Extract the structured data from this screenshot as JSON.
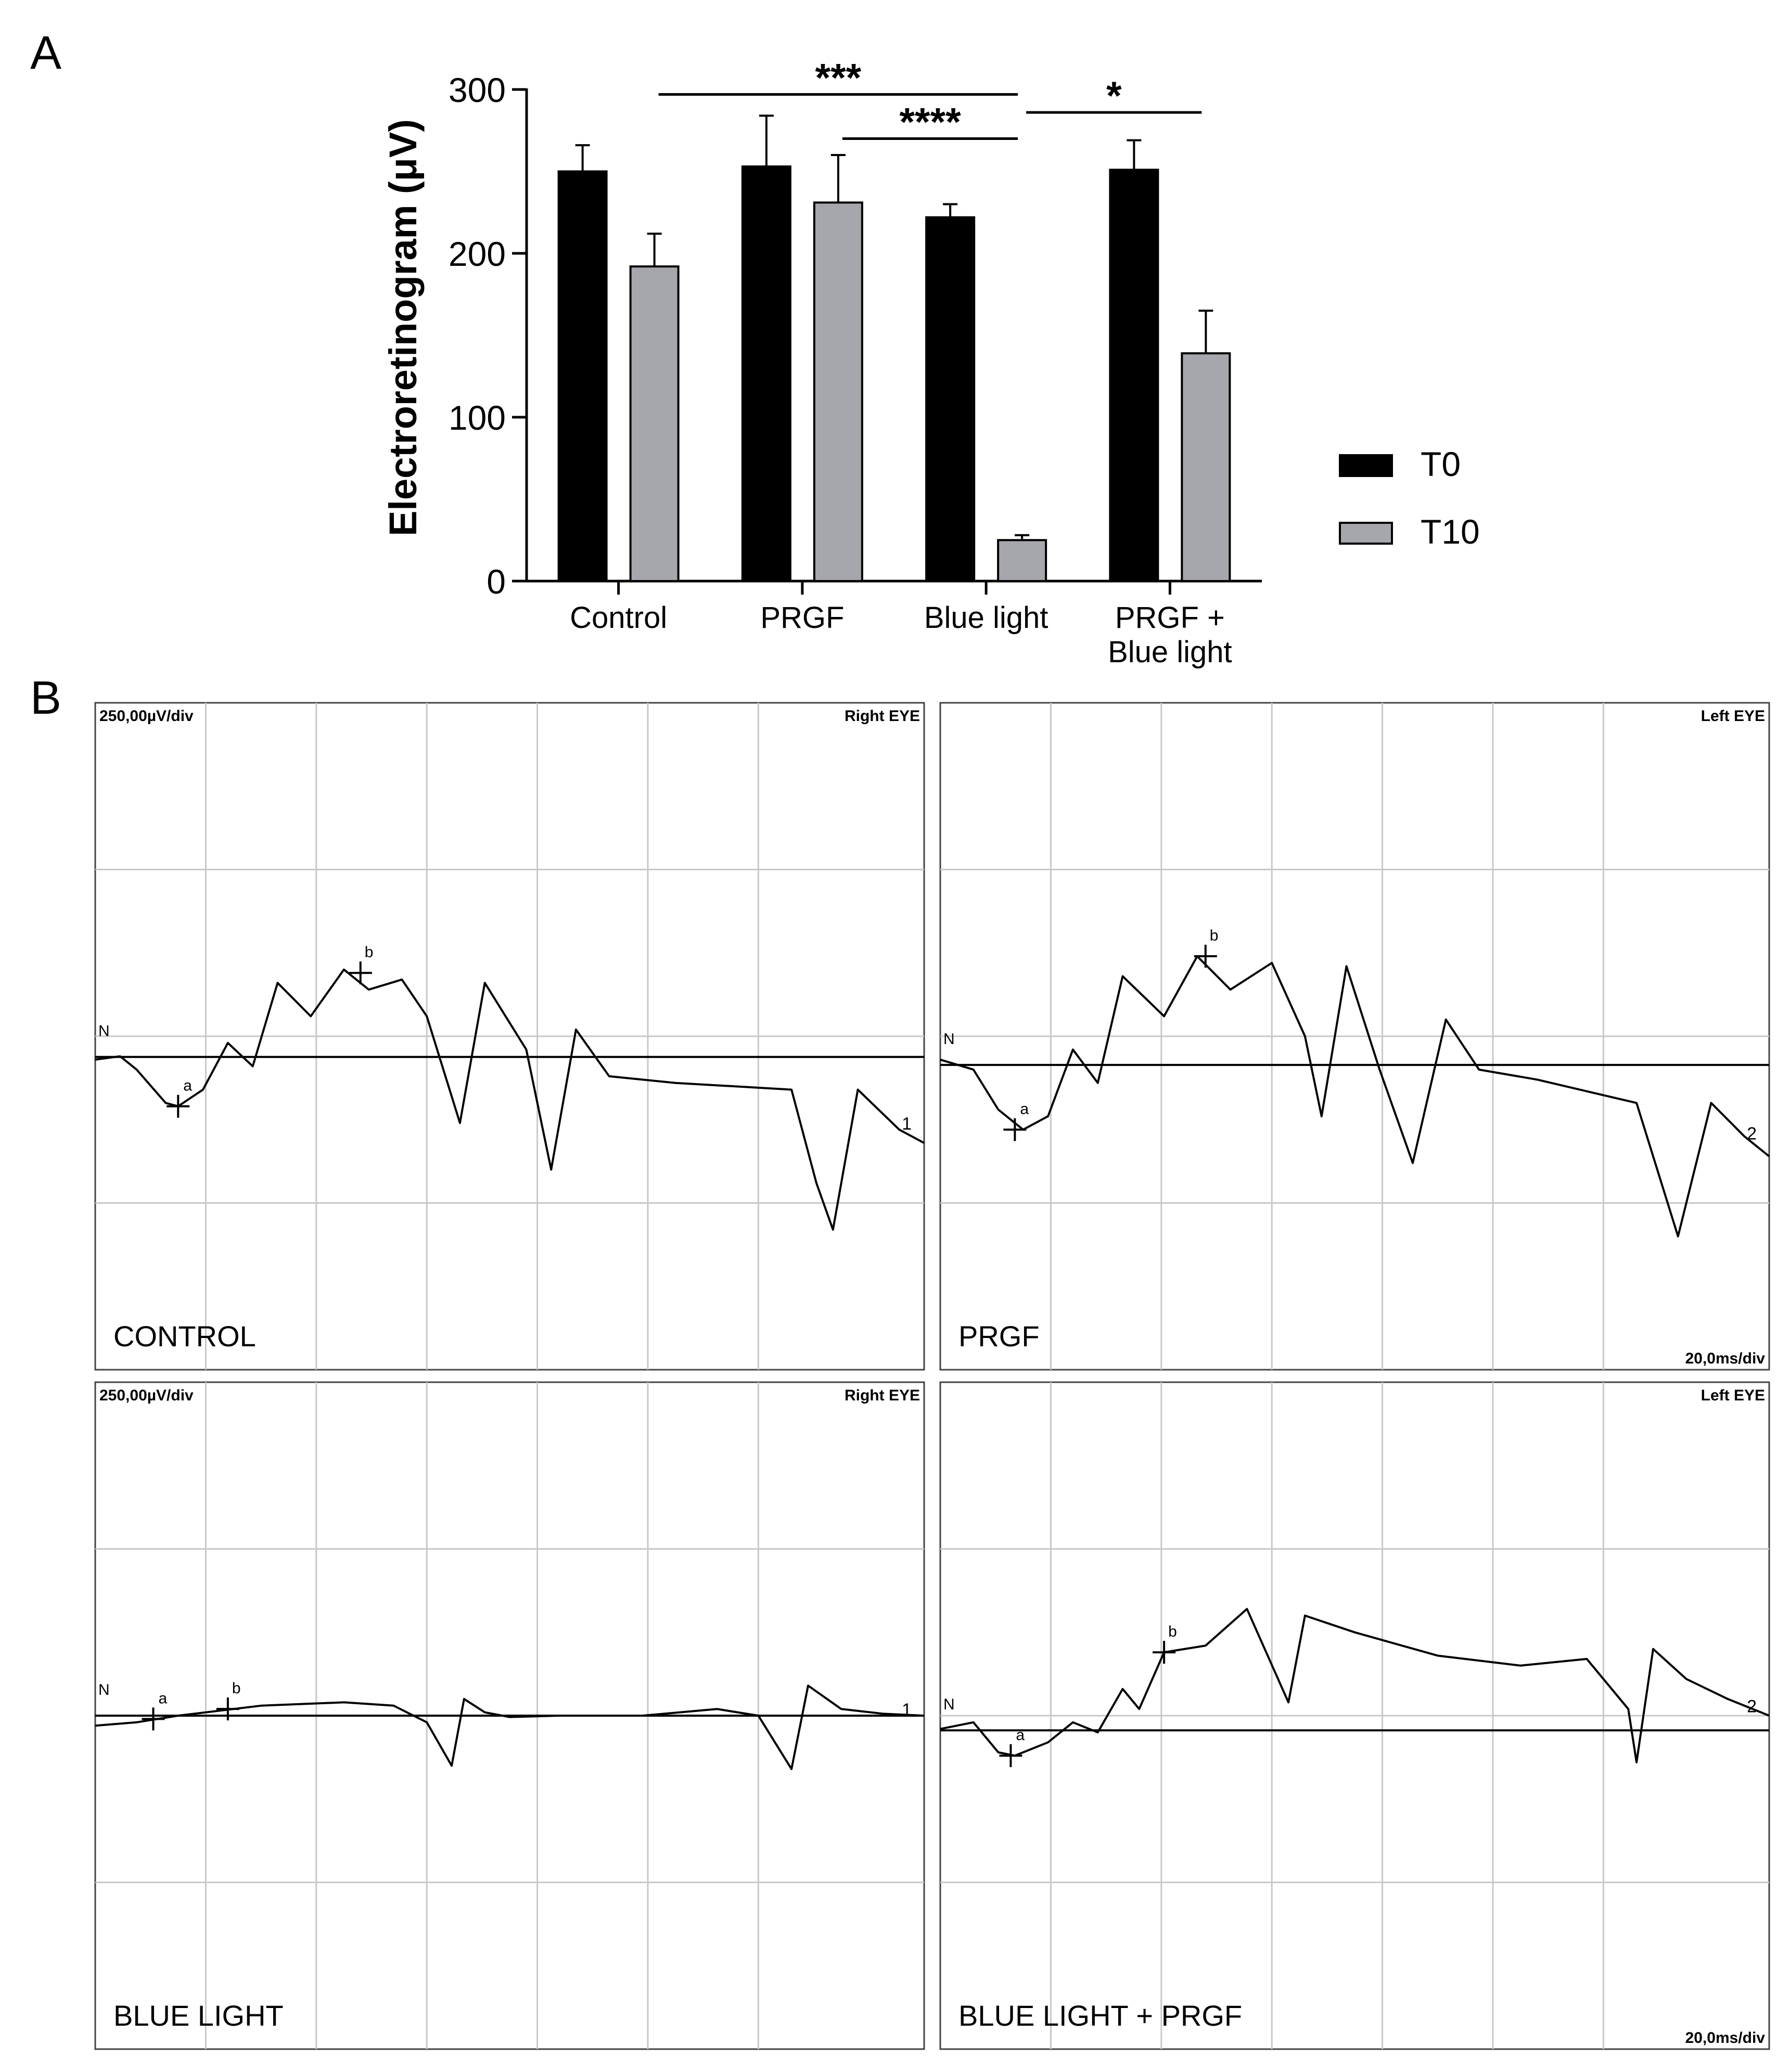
{
  "panel_a": {
    "label": "A",
    "chart_data": {
      "type": "bar",
      "title": "",
      "xlabel": "",
      "ylabel": "Electroretinogram (μV)",
      "ylim": [
        0,
        300
      ],
      "yticks": [
        0,
        100,
        200,
        300
      ],
      "categories": [
        [
          "Control"
        ],
        [
          "PRGF"
        ],
        [
          "Blue light"
        ],
        [
          "PRGF +",
          "Blue light"
        ]
      ],
      "series": [
        {
          "name": "T0",
          "color": "#000000",
          "values": [
            250,
            253,
            222,
            251
          ],
          "errors": [
            16,
            31,
            8,
            18
          ]
        },
        {
          "name": "T10",
          "color": "#a6a6ad",
          "values": [
            192,
            231,
            25,
            139
          ],
          "errors": [
            20,
            29,
            3,
            26
          ]
        }
      ],
      "legend": {
        "position": "right",
        "entries": [
          "T0",
          "T10"
        ]
      },
      "grid": false,
      "significance": [
        {
          "label": "***",
          "from": "Control T10",
          "to": "Blue light T10"
        },
        {
          "label": "****",
          "from": "PRGF T10",
          "to": "Blue light T10"
        },
        {
          "label": "*",
          "from": "Blue light T10",
          "to": "PRGF + Blue light T10"
        }
      ]
    }
  },
  "panel_b": {
    "label": "B",
    "chart_data": [
      {
        "type": "line",
        "group": "CONTROL",
        "scale_label": "250,00µV/div",
        "eye": "Right EYE",
        "time_label": "",
        "trace_number": "1",
        "baseline_label": "N",
        "markers": [
          "a",
          "b"
        ]
      },
      {
        "type": "line",
        "group": "PRGF",
        "scale_label": "",
        "eye": "Left EYE",
        "time_label": "20,0ms/div",
        "trace_number": "2",
        "baseline_label": "N",
        "markers": [
          "a",
          "b"
        ]
      },
      {
        "type": "line",
        "group": "BLUE LIGHT",
        "scale_label": "250,00µV/div",
        "eye": "Right EYE",
        "time_label": "",
        "trace_number": "1",
        "baseline_label": "N",
        "markers": [
          "a",
          "b"
        ]
      },
      {
        "type": "line",
        "group": "BLUE LIGHT + PRGF",
        "scale_label": "",
        "eye": "Left EYE",
        "time_label": "20,0ms/div",
        "trace_number": "2",
        "baseline_label": "N",
        "markers": [
          "a",
          "b"
        ]
      }
    ]
  }
}
